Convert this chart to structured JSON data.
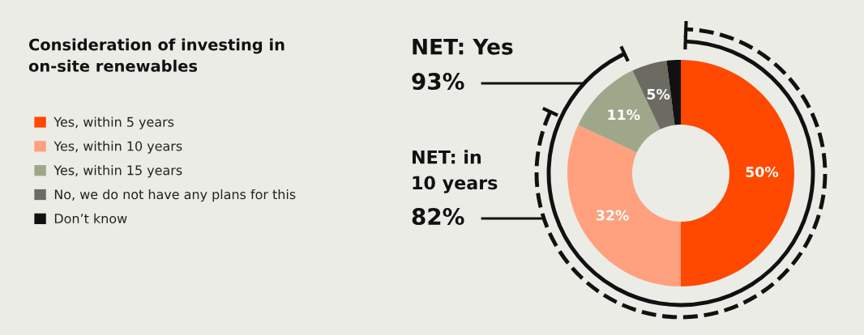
{
  "chart_data": {
    "type": "donut",
    "title": "Consideration of investing in\non-site renewables",
    "categories": [
      "Yes, within 5 years",
      "Yes, within 10 years",
      "Yes, within 15 years",
      "No, we do not have any plans for this",
      "Don’t know"
    ],
    "values": [
      50,
      32,
      11,
      5,
      2
    ],
    "colors": [
      "#ff4800",
      "#ffa07e",
      "#9ea78a",
      "#6b6b62",
      "#111111"
    ],
    "value_labels": [
      "50%",
      "32%",
      "11%",
      "5%",
      null
    ],
    "annotations": [
      "NET: Yes\n93%",
      "NET: in\n10 years\n82%"
    ],
    "legend": "left"
  }
}
